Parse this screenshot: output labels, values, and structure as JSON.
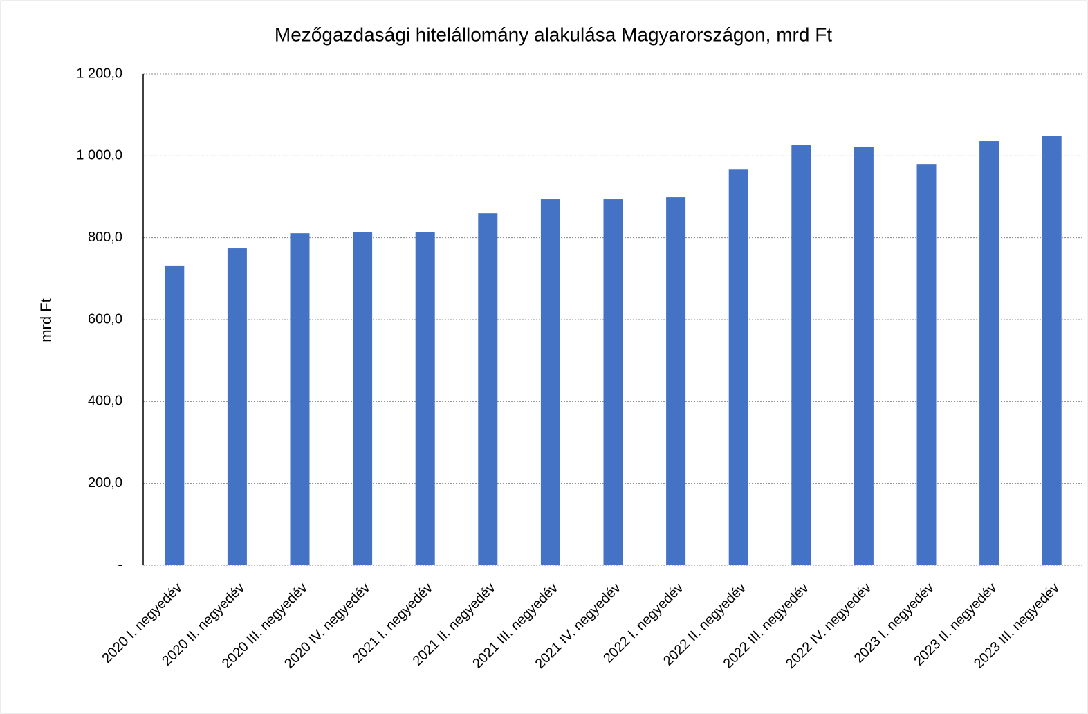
{
  "chart_data": {
    "type": "bar",
    "title": "Mezőgazdasági hitelállomány alakulása Magyarországon, mrd Ft",
    "y_label": "mrd Ft",
    "categories": [
      "2020 I. negyedév",
      "2020 II. negyedév",
      "2020 III. negyedév",
      "2020 IV. negyedév",
      "2021 I. negyedév",
      "2021 II. negyedév",
      "2021 III. negyedév",
      "2021 IV. negyedév",
      "2022 I. negyedév",
      "2022 II. negyedév",
      "2022 III. negyedév",
      "2022 IV. negyedév",
      "2023 I. negyedév",
      "2023 II. negyedév",
      "2023 III. negyedév"
    ],
    "values": [
      732,
      774,
      811,
      813,
      813,
      860,
      894,
      894,
      899,
      968,
      1026,
      1021,
      980,
      1036,
      1048
    ],
    "color": "#4472c4",
    "ylim": [
      0,
      1200
    ],
    "yticks": [
      {
        "value": 0,
        "label": "-"
      },
      {
        "value": 200,
        "label": "200,0"
      },
      {
        "value": 400,
        "label": "400,0"
      },
      {
        "value": 600,
        "label": "600,0"
      },
      {
        "value": 800,
        "label": "800,0"
      },
      {
        "value": 1000,
        "label": "1 000,0"
      },
      {
        "value": 1200,
        "label": "1 200,0"
      }
    ],
    "grid": true
  }
}
